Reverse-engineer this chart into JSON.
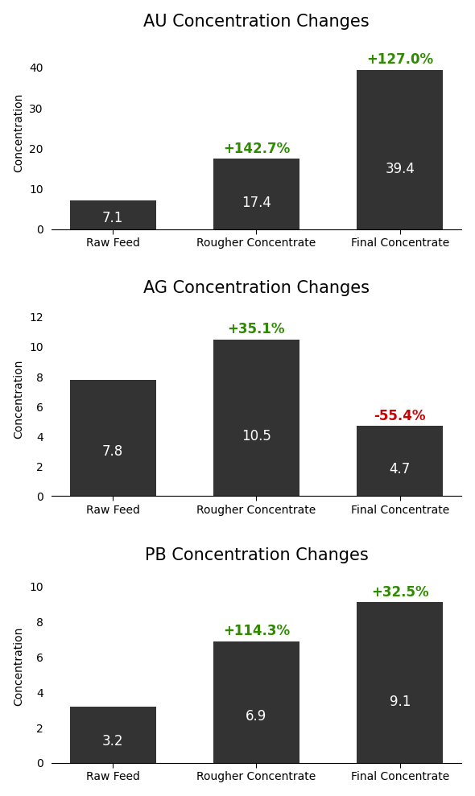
{
  "charts": [
    {
      "title": "AU Concentration Changes",
      "categories": [
        "Raw Feed",
        "Rougher Concentrate",
        "Final Concentrate"
      ],
      "values": [
        7.1,
        17.4,
        39.4
      ],
      "pct_changes": [
        null,
        "+142.7%",
        "+127.0%"
      ],
      "pct_colors": [
        null,
        "#2e8b00",
        "#2e8b00"
      ],
      "ylim": [
        0,
        48
      ]
    },
    {
      "title": "AG Concentration Changes",
      "categories": [
        "Raw Feed",
        "Rougher Concentrate",
        "Final Concentrate"
      ],
      "values": [
        7.8,
        10.5,
        4.7
      ],
      "pct_changes": [
        null,
        "+35.1%",
        "-55.4%"
      ],
      "pct_colors": [
        null,
        "#2e8b00",
        "#cc0000"
      ],
      "ylim": [
        0,
        13
      ]
    },
    {
      "title": "PB Concentration Changes",
      "categories": [
        "Raw Feed",
        "Rougher Concentrate",
        "Final Concentrate"
      ],
      "values": [
        3.2,
        6.9,
        9.1
      ],
      "pct_changes": [
        null,
        "+114.3%",
        "+32.5%"
      ],
      "pct_colors": [
        null,
        "#2e8b00",
        "#2e8b00"
      ],
      "ylim": [
        0,
        11
      ]
    }
  ],
  "bar_color": "#333333",
  "bar_value_color": "#ffffff",
  "ylabel": "Concentration",
  "background_color": "#ffffff",
  "bar_value_fontsize": 12,
  "pct_fontsize": 12,
  "title_fontsize": 15,
  "tick_fontsize": 10,
  "bar_width": 0.6
}
